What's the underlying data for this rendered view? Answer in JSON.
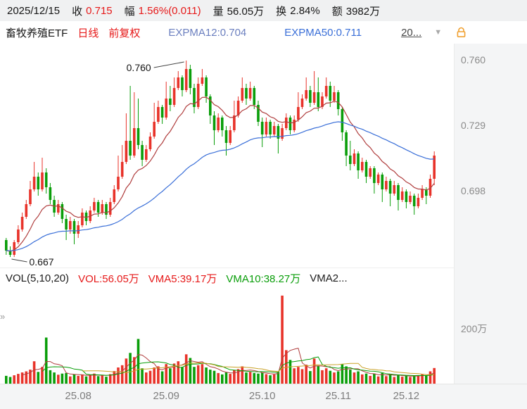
{
  "header": {
    "date": "2025/12/15",
    "close_label": "收",
    "close_value": "0.715",
    "change_label": "幅",
    "change_value": "1.56%(0.011)",
    "volume_label": "量",
    "volume_value": "56.05万",
    "turnover_label": "换",
    "turnover_value": "2.84%",
    "amount_label": "额",
    "amount_value": "3982万"
  },
  "toolbar": {
    "title": "畜牧养殖ETF",
    "period": "日线",
    "adjust": "前复权",
    "expma12": "EXPMA12:0.704",
    "expma50": "EXPMA50:0.711",
    "more_link": "20...",
    "dropdown_icon": "▼"
  },
  "indicator_bar": {
    "name": "VOL(5,10,20)",
    "vol": "VOL:56.05万",
    "vma5": "VMA5:39.17万",
    "vma10": "VMA10:38.27万",
    "vma20": "VMA2..."
  },
  "annotations": {
    "high_label": "0.760",
    "low_label": "0.667"
  },
  "price_axis_labels": [
    "0.760",
    "0.729",
    "0.698"
  ],
  "volume_axis_labels": [
    "200万"
  ],
  "x_axis_labels": [
    "25.08",
    "25.09",
    "25.10",
    "25.11",
    "25.12"
  ],
  "side": {
    "expand_chevron": "»"
  },
  "colors": {
    "red_text": "#e61919",
    "candle_up": "#e8332a",
    "candle_down": "#0a9e0a",
    "green": "#0a9e0a",
    "ema12": "#b03e3e",
    "ema50": "#3a6fd8",
    "expma12_text": "#6b7fbf",
    "expma50_text": "#3a6fd8",
    "vma20": "#c9a227",
    "axis_text": "#8a8a8a",
    "orange": "#f0a030"
  },
  "chart_data": {
    "type": "candlestick",
    "symbol": "畜牧养殖ETF",
    "period": "日线",
    "adjustment": "前复权",
    "latest_close": 0.715,
    "change_pct": 1.56,
    "change_abs": 0.011,
    "expma_periods": [
      12,
      50
    ],
    "expma_values": [
      0.704,
      0.711
    ],
    "vma_periods": [
      5,
      10,
      20
    ],
    "vma_values_wan": [
      39.17,
      38.27,
      null
    ],
    "volume_latest_wan": 56.05,
    "high_annotation": 0.76,
    "low_annotation": 0.667,
    "price_range": [
      0.662,
      0.768
    ],
    "price_ticks": [
      0.76,
      0.729,
      0.698
    ],
    "volume_range_wan": [
      0,
      340
    ],
    "volume_ticks_wan": [
      200
    ],
    "x_tick_indices": [
      18,
      40,
      64,
      83,
      100
    ],
    "candle_format": [
      "open",
      "high",
      "low",
      "close",
      "volume_wan"
    ],
    "candles": [
      [
        0.675,
        0.676,
        0.668,
        0.67,
        28
      ],
      [
        0.67,
        0.672,
        0.667,
        0.668,
        24
      ],
      [
        0.668,
        0.675,
        0.667,
        0.674,
        30
      ],
      [
        0.674,
        0.682,
        0.673,
        0.68,
        35
      ],
      [
        0.68,
        0.688,
        0.679,
        0.686,
        40
      ],
      [
        0.686,
        0.694,
        0.685,
        0.692,
        44
      ],
      [
        0.692,
        0.703,
        0.691,
        0.699,
        50
      ],
      [
        0.699,
        0.712,
        0.698,
        0.705,
        80
      ],
      [
        0.705,
        0.707,
        0.696,
        0.699,
        42
      ],
      [
        0.699,
        0.714,
        0.698,
        0.707,
        60
      ],
      [
        0.707,
        0.709,
        0.697,
        0.7,
        165
      ],
      [
        0.7,
        0.702,
        0.692,
        0.694,
        48
      ],
      [
        0.694,
        0.696,
        0.686,
        0.688,
        40
      ],
      [
        0.688,
        0.694,
        0.687,
        0.692,
        32
      ],
      [
        0.692,
        0.693,
        0.683,
        0.685,
        36
      ],
      [
        0.685,
        0.687,
        0.675,
        0.68,
        38
      ],
      [
        0.68,
        0.686,
        0.678,
        0.684,
        26
      ],
      [
        0.684,
        0.685,
        0.673,
        0.678,
        34
      ],
      [
        0.678,
        0.684,
        0.676,
        0.682,
        28
      ],
      [
        0.682,
        0.69,
        0.681,
        0.688,
        33
      ],
      [
        0.688,
        0.689,
        0.682,
        0.684,
        26
      ],
      [
        0.684,
        0.691,
        0.683,
        0.689,
        30
      ],
      [
        0.689,
        0.695,
        0.688,
        0.693,
        36
      ],
      [
        0.693,
        0.694,
        0.686,
        0.688,
        27
      ],
      [
        0.688,
        0.694,
        0.687,
        0.692,
        31
      ],
      [
        0.692,
        0.693,
        0.685,
        0.687,
        25
      ],
      [
        0.687,
        0.695,
        0.686,
        0.693,
        34
      ],
      [
        0.693,
        0.701,
        0.692,
        0.699,
        45
      ],
      [
        0.699,
        0.715,
        0.698,
        0.705,
        58
      ],
      [
        0.705,
        0.72,
        0.704,
        0.712,
        66
      ],
      [
        0.712,
        0.735,
        0.711,
        0.722,
        90
      ],
      [
        0.722,
        0.748,
        0.713,
        0.715,
        110
      ],
      [
        0.715,
        0.745,
        0.714,
        0.728,
        95
      ],
      [
        0.728,
        0.742,
        0.718,
        0.72,
        160
      ],
      [
        0.72,
        0.722,
        0.71,
        0.713,
        55
      ],
      [
        0.713,
        0.72,
        0.712,
        0.718,
        40
      ],
      [
        0.718,
        0.726,
        0.717,
        0.724,
        46
      ],
      [
        0.724,
        0.74,
        0.723,
        0.731,
        58
      ],
      [
        0.731,
        0.741,
        0.73,
        0.738,
        62
      ],
      [
        0.738,
        0.739,
        0.73,
        0.733,
        44
      ],
      [
        0.733,
        0.75,
        0.732,
        0.742,
        70
      ],
      [
        0.742,
        0.748,
        0.736,
        0.739,
        55
      ],
      [
        0.739,
        0.752,
        0.738,
        0.747,
        72
      ],
      [
        0.747,
        0.755,
        0.746,
        0.752,
        80
      ],
      [
        0.752,
        0.753,
        0.743,
        0.746,
        60
      ],
      [
        0.746,
        0.76,
        0.745,
        0.756,
        105
      ],
      [
        0.756,
        0.758,
        0.744,
        0.747,
        92
      ],
      [
        0.747,
        0.749,
        0.735,
        0.738,
        60
      ],
      [
        0.738,
        0.752,
        0.737,
        0.749,
        66
      ],
      [
        0.749,
        0.756,
        0.748,
        0.752,
        70
      ],
      [
        0.752,
        0.753,
        0.74,
        0.743,
        58
      ],
      [
        0.743,
        0.744,
        0.73,
        0.734,
        50
      ],
      [
        0.734,
        0.736,
        0.72,
        0.727,
        46
      ],
      [
        0.727,
        0.735,
        0.726,
        0.733,
        38
      ],
      [
        0.733,
        0.734,
        0.724,
        0.727,
        33
      ],
      [
        0.727,
        0.729,
        0.715,
        0.721,
        40
      ],
      [
        0.721,
        0.729,
        0.72,
        0.727,
        35
      ],
      [
        0.727,
        0.741,
        0.726,
        0.734,
        48
      ],
      [
        0.734,
        0.743,
        0.733,
        0.741,
        52
      ],
      [
        0.741,
        0.752,
        0.74,
        0.747,
        62
      ],
      [
        0.747,
        0.749,
        0.739,
        0.742,
        40
      ],
      [
        0.742,
        0.75,
        0.741,
        0.747,
        42
      ],
      [
        0.747,
        0.748,
        0.737,
        0.739,
        38
      ],
      [
        0.739,
        0.741,
        0.729,
        0.731,
        36
      ],
      [
        0.731,
        0.733,
        0.719,
        0.725,
        40
      ],
      [
        0.725,
        0.733,
        0.724,
        0.731,
        34
      ],
      [
        0.731,
        0.732,
        0.723,
        0.725,
        30
      ],
      [
        0.725,
        0.731,
        0.724,
        0.729,
        33
      ],
      [
        0.729,
        0.73,
        0.716,
        0.723,
        42
      ],
      [
        0.723,
        0.73,
        0.722,
        0.728,
        315
      ],
      [
        0.728,
        0.735,
        0.727,
        0.733,
        120
      ],
      [
        0.733,
        0.734,
        0.725,
        0.727,
        85
      ],
      [
        0.727,
        0.734,
        0.726,
        0.732,
        55
      ],
      [
        0.732,
        0.745,
        0.731,
        0.738,
        60
      ],
      [
        0.738,
        0.744,
        0.737,
        0.742,
        52
      ],
      [
        0.742,
        0.752,
        0.741,
        0.746,
        68
      ],
      [
        0.746,
        0.748,
        0.738,
        0.74,
        45
      ],
      [
        0.74,
        0.755,
        0.739,
        0.745,
        90
      ],
      [
        0.745,
        0.752,
        0.736,
        0.738,
        64
      ],
      [
        0.738,
        0.745,
        0.737,
        0.743,
        48
      ],
      [
        0.743,
        0.752,
        0.742,
        0.748,
        55
      ],
      [
        0.748,
        0.75,
        0.738,
        0.741,
        46
      ],
      [
        0.741,
        0.748,
        0.74,
        0.745,
        40
      ],
      [
        0.745,
        0.746,
        0.734,
        0.737,
        44
      ],
      [
        0.737,
        0.738,
        0.722,
        0.726,
        70
      ],
      [
        0.726,
        0.727,
        0.71,
        0.715,
        62
      ],
      [
        0.715,
        0.722,
        0.708,
        0.711,
        50
      ],
      [
        0.711,
        0.718,
        0.71,
        0.716,
        40
      ],
      [
        0.716,
        0.717,
        0.704,
        0.708,
        44
      ],
      [
        0.708,
        0.714,
        0.707,
        0.712,
        33
      ],
      [
        0.712,
        0.713,
        0.702,
        0.705,
        36
      ],
      [
        0.705,
        0.71,
        0.704,
        0.709,
        28
      ],
      [
        0.709,
        0.71,
        0.697,
        0.702,
        36
      ],
      [
        0.702,
        0.707,
        0.701,
        0.706,
        26
      ],
      [
        0.706,
        0.707,
        0.693,
        0.699,
        38
      ],
      [
        0.699,
        0.705,
        0.698,
        0.703,
        27
      ],
      [
        0.703,
        0.704,
        0.691,
        0.697,
        35
      ],
      [
        0.697,
        0.703,
        0.696,
        0.701,
        24
      ],
      [
        0.701,
        0.702,
        0.689,
        0.694,
        32
      ],
      [
        0.694,
        0.7,
        0.693,
        0.698,
        25
      ],
      [
        0.698,
        0.699,
        0.69,
        0.693,
        28
      ],
      [
        0.693,
        0.698,
        0.692,
        0.696,
        24
      ],
      [
        0.696,
        0.697,
        0.687,
        0.691,
        30
      ],
      [
        0.691,
        0.697,
        0.69,
        0.695,
        30
      ],
      [
        0.695,
        0.701,
        0.694,
        0.699,
        34
      ],
      [
        0.699,
        0.7,
        0.692,
        0.696,
        28
      ],
      [
        0.696,
        0.706,
        0.695,
        0.704,
        44
      ],
      [
        0.704,
        0.717,
        0.701,
        0.715,
        56
      ]
    ]
  }
}
